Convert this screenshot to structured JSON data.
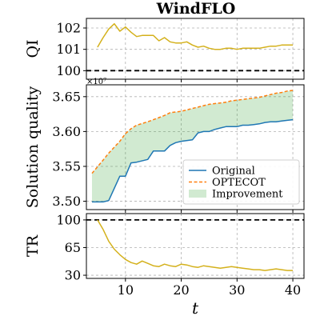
{
  "chart_data": {
    "title": "WindFLO",
    "xlabel": "t",
    "x_ticks": [
      10,
      20,
      30,
      40
    ],
    "xlim": [
      3.0,
      42.0
    ],
    "panels": [
      {
        "type": "line",
        "ylabel": "QI",
        "ylim": [
          99.6,
          102.45
        ],
        "y_ticks": [
          100,
          101,
          102
        ],
        "reference_line": {
          "y": 100,
          "style": "dashed",
          "color": "#000000"
        },
        "series": [
          {
            "color": "#d4b11c",
            "x": [
              5,
              6,
              7,
              8,
              9,
              10,
              11,
              12,
              13,
              14,
              15,
              16,
              17,
              18,
              19,
              20,
              21,
              22,
              23,
              24,
              25,
              26,
              27,
              28,
              29,
              30,
              31,
              32,
              33,
              34,
              35,
              36,
              37,
              38,
              39,
              40
            ],
            "y": [
              101.1,
              101.55,
              101.95,
              102.2,
              101.85,
              102.05,
              101.8,
              101.6,
              101.65,
              101.65,
              101.65,
              101.4,
              101.55,
              101.35,
              101.3,
              101.3,
              101.35,
              101.2,
              101.1,
              101.15,
              101.05,
              101.0,
              101.0,
              101.05,
              101.05,
              101.0,
              101.05,
              101.05,
              101.05,
              101.05,
              101.1,
              101.15,
              101.15,
              101.2,
              101.2,
              101.2
            ]
          }
        ]
      },
      {
        "type": "area",
        "ylabel": "Solution quality",
        "multiplier": "×10⁷",
        "ylim": [
          3.488,
          3.667
        ],
        "y_ticks": [
          3.5,
          3.55,
          3.6,
          3.65
        ],
        "y_tick_labels": [
          "3.50",
          "3.55",
          "3.60",
          "3.65"
        ],
        "legend": {
          "position": "lower right",
          "entries": [
            "Original",
            "OPTECOT",
            "Improvement"
          ]
        },
        "series": [
          {
            "name": "Original",
            "color": "#1f77b4",
            "style": "solid",
            "x": [
              4,
              6,
              7,
              9,
              10,
              11,
              12,
              14,
              15,
              16,
              17,
              18,
              19,
              20,
              22,
              23,
              24,
              25,
              26,
              27,
              28,
              29,
              30,
              31,
              32,
              33,
              34,
              35,
              36,
              37,
              38,
              39,
              40
            ],
            "y": [
              3.499,
              3.499,
              3.501,
              3.536,
              3.536,
              3.555,
              3.556,
              3.56,
              3.572,
              3.572,
              3.572,
              3.58,
              3.584,
              3.586,
              3.588,
              3.598,
              3.6,
              3.6,
              3.603,
              3.605,
              3.607,
              3.607,
              3.607,
              3.609,
              3.609,
              3.61,
              3.611,
              3.613,
              3.614,
              3.614,
              3.615,
              3.616,
              3.617
            ]
          },
          {
            "name": "OPTECOT",
            "color": "#ff7f0e",
            "style": "dashed",
            "x": [
              4,
              6,
              7,
              9,
              10,
              11,
              12,
              14,
              15,
              16,
              17,
              18,
              19,
              20,
              22,
              23,
              24,
              25,
              26,
              27,
              28,
              29,
              30,
              31,
              32,
              33,
              34,
              35,
              36,
              37,
              38,
              39,
              40
            ],
            "y": [
              3.54,
              3.559,
              3.569,
              3.586,
              3.597,
              3.604,
              3.609,
              3.614,
              3.617,
              3.62,
              3.623,
              3.627,
              3.628,
              3.629,
              3.633,
              3.635,
              3.637,
              3.639,
              3.64,
              3.641,
              3.642,
              3.644,
              3.645,
              3.646,
              3.647,
              3.648,
              3.649,
              3.651,
              3.653,
              3.655,
              3.656,
              3.658,
              3.659
            ]
          },
          {
            "name": "Improvement",
            "fill": "#2ca02c",
            "fill_opacity": 0.22,
            "between": [
              "Original",
              "OPTECOT"
            ]
          }
        ]
      },
      {
        "type": "line",
        "ylabel": "TR",
        "ylim": [
          26,
          108
        ],
        "y_ticks": [
          30,
          65,
          100
        ],
        "reference_line": {
          "y": 100,
          "style": "dashed",
          "color": "#000000"
        },
        "series": [
          {
            "color": "#d4b11c",
            "x": [
              5,
              6,
              7,
              8,
              9,
              10,
              11,
              12,
              13,
              14,
              15,
              16,
              17,
              18,
              19,
              20,
              21,
              22,
              23,
              24,
              25,
              26,
              27,
              28,
              29,
              30,
              31,
              32,
              33,
              34,
              35,
              36,
              37,
              38,
              39,
              40
            ],
            "y": [
              100,
              88,
              73,
              63,
              56,
              50,
              46,
              44,
              48,
              45,
              42,
              41,
              44,
              42,
              41,
              44,
              43,
              41,
              40,
              42,
              41,
              40,
              39,
              40,
              41,
              40,
              39,
              38,
              37,
              37,
              36,
              37,
              38,
              37,
              36,
              36
            ]
          }
        ]
      }
    ]
  }
}
